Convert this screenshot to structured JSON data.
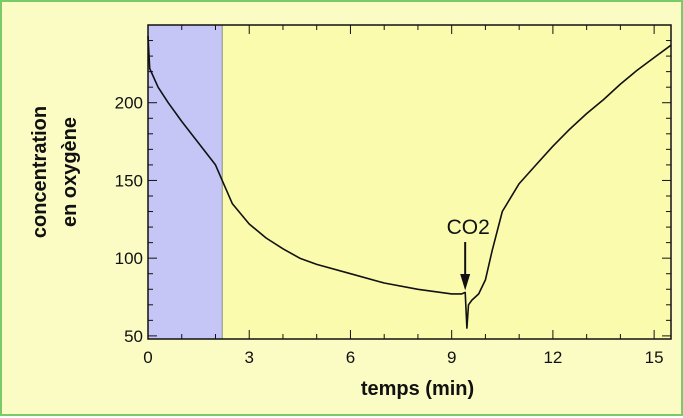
{
  "chart_data": {
    "type": "line",
    "title": "",
    "xlabel": "temps (min)",
    "ylabel": [
      "concentration",
      "en oxygène"
    ],
    "xlim": [
      0,
      15.5
    ],
    "ylim": [
      48,
      250
    ],
    "xticks": [
      0,
      3,
      6,
      9,
      12,
      15
    ],
    "yticks": [
      50,
      100,
      150,
      200
    ],
    "grid": false,
    "shaded_region": {
      "x": [
        0,
        2.2
      ],
      "color": "#c5c6f6"
    },
    "plot_background": "#fbfbad",
    "outer_background": "#fbfbc4",
    "frame_color": "#7cc96a",
    "line_color": "#111111",
    "annotation": {
      "text": "CO2",
      "x": 9.4,
      "y": 78
    },
    "series": [
      {
        "x": [
          0,
          0.05,
          0.3,
          0.6,
          1.0,
          1.5,
          2.0,
          2.2,
          2.5,
          3.0,
          3.5,
          4.0,
          4.5,
          5.0,
          6.0,
          7.0,
          8.0,
          9.0,
          9.3,
          9.4,
          9.45,
          9.5,
          9.6,
          9.8,
          10.0,
          10.2,
          10.5,
          11.0,
          11.5,
          12.0,
          12.5,
          13.0,
          13.5,
          14.0,
          14.5,
          15.0,
          15.5
        ],
        "y": [
          243,
          222,
          210,
          200,
          188,
          174,
          160,
          150,
          135,
          122,
          113,
          106,
          100,
          96,
          90,
          84,
          80,
          77,
          77,
          78,
          55,
          70,
          73,
          77,
          86,
          105,
          130,
          148,
          160,
          172,
          183,
          193,
          202,
          212,
          221,
          229,
          237
        ]
      }
    ]
  }
}
